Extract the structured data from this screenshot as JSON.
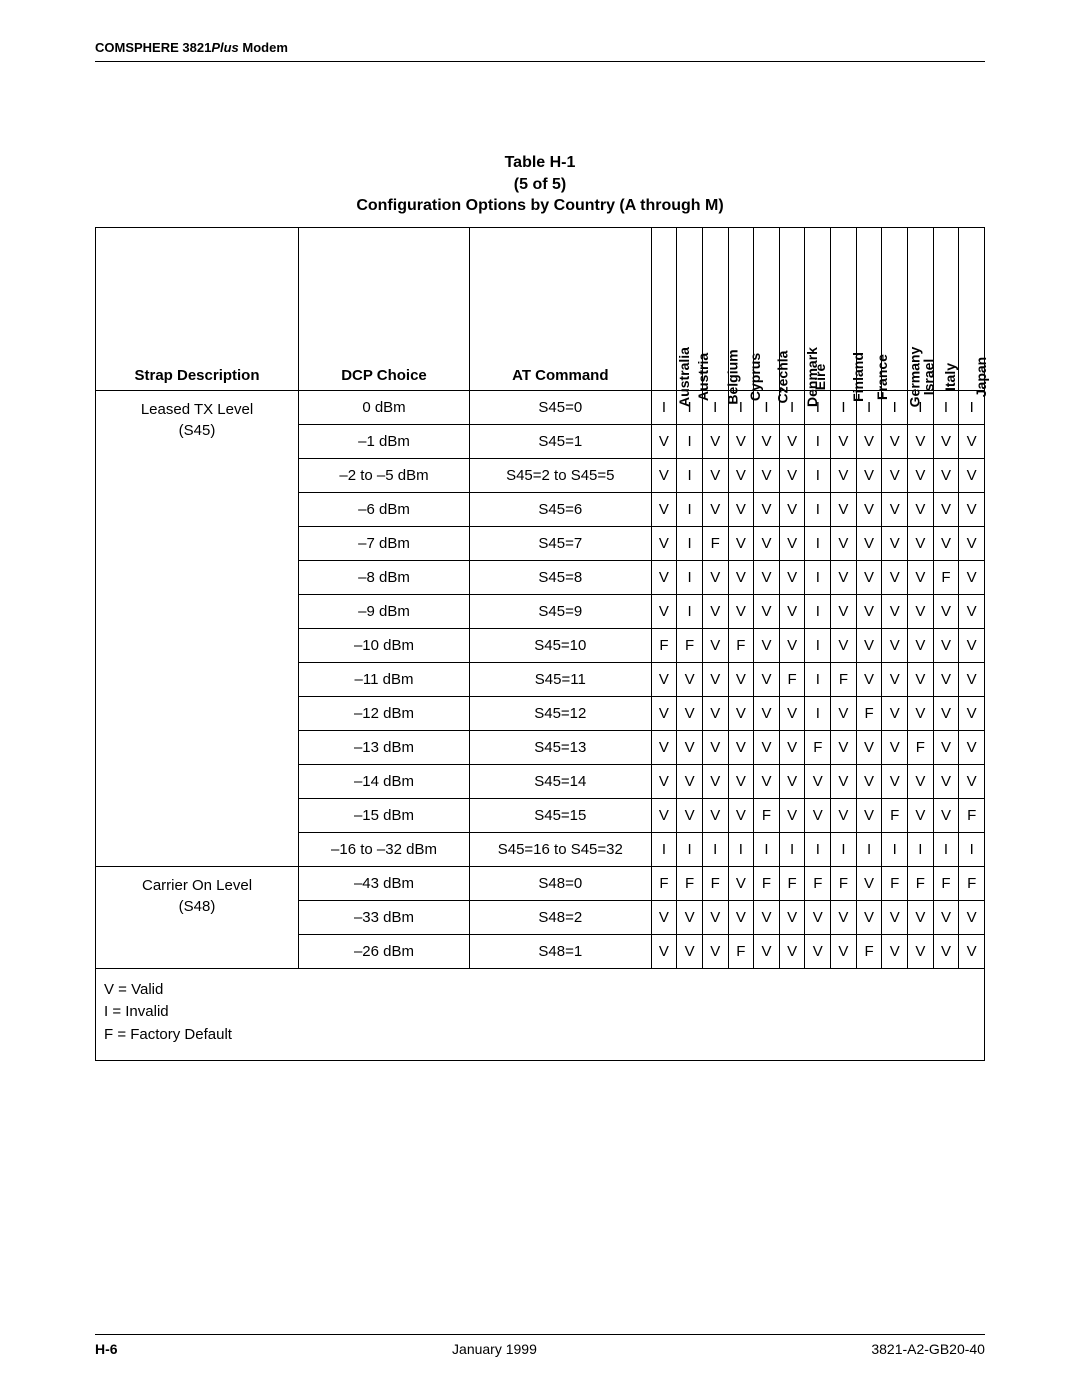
{
  "header": {
    "prefix": "COMSPHERE 3821",
    "plus": "Plus",
    "suffix": " Modem"
  },
  "caption": {
    "line1": "Table H-1",
    "line2": "(5 of 5)",
    "line3": "Configuration Options by Country (A through M)"
  },
  "columns": {
    "strap": "Strap Description",
    "dcp": "DCP Choice",
    "at": "AT Command",
    "countries": [
      "Australia",
      "Austria",
      "Belgium",
      "Cyprus",
      "Czechia",
      "Denmark",
      "Eire",
      "Finland",
      "France",
      "Germany",
      "Israel",
      "Italy",
      "Japan"
    ]
  },
  "groups": [
    {
      "strap_line1": "Leased TX Level",
      "strap_line2": "(S45)",
      "rows": [
        {
          "dcp": "0 dBm",
          "at": "S45=0",
          "v": [
            "I",
            "I",
            "I",
            "I",
            "I",
            "I",
            "I",
            "I",
            "I",
            "I",
            "I",
            "I",
            "I"
          ]
        },
        {
          "dcp": "–1 dBm",
          "at": "S45=1",
          "v": [
            "V",
            "I",
            "V",
            "V",
            "V",
            "V",
            "I",
            "V",
            "V",
            "V",
            "V",
            "V",
            "V"
          ]
        },
        {
          "dcp": "–2 to –5 dBm",
          "at": "S45=2 to S45=5",
          "v": [
            "V",
            "I",
            "V",
            "V",
            "V",
            "V",
            "I",
            "V",
            "V",
            "V",
            "V",
            "V",
            "V"
          ]
        },
        {
          "dcp": "–6 dBm",
          "at": "S45=6",
          "v": [
            "V",
            "I",
            "V",
            "V",
            "V",
            "V",
            "I",
            "V",
            "V",
            "V",
            "V",
            "V",
            "V"
          ]
        },
        {
          "dcp": "–7 dBm",
          "at": "S45=7",
          "v": [
            "V",
            "I",
            "F",
            "V",
            "V",
            "V",
            "I",
            "V",
            "V",
            "V",
            "V",
            "V",
            "V"
          ]
        },
        {
          "dcp": "–8 dBm",
          "at": "S45=8",
          "v": [
            "V",
            "I",
            "V",
            "V",
            "V",
            "V",
            "I",
            "V",
            "V",
            "V",
            "V",
            "F",
            "V"
          ]
        },
        {
          "dcp": "–9 dBm",
          "at": "S45=9",
          "v": [
            "V",
            "I",
            "V",
            "V",
            "V",
            "V",
            "I",
            "V",
            "V",
            "V",
            "V",
            "V",
            "V"
          ]
        },
        {
          "dcp": "–10 dBm",
          "at": "S45=10",
          "v": [
            "F",
            "F",
            "V",
            "F",
            "V",
            "V",
            "I",
            "V",
            "V",
            "V",
            "V",
            "V",
            "V"
          ]
        },
        {
          "dcp": "–11 dBm",
          "at": "S45=11",
          "v": [
            "V",
            "V",
            "V",
            "V",
            "V",
            "F",
            "I",
            "F",
            "V",
            "V",
            "V",
            "V",
            "V"
          ]
        },
        {
          "dcp": "–12 dBm",
          "at": "S45=12",
          "v": [
            "V",
            "V",
            "V",
            "V",
            "V",
            "V",
            "I",
            "V",
            "F",
            "V",
            "V",
            "V",
            "V"
          ]
        },
        {
          "dcp": "–13 dBm",
          "at": "S45=13",
          "v": [
            "V",
            "V",
            "V",
            "V",
            "V",
            "V",
            "F",
            "V",
            "V",
            "V",
            "F",
            "V",
            "V"
          ]
        },
        {
          "dcp": "–14 dBm",
          "at": "S45=14",
          "v": [
            "V",
            "V",
            "V",
            "V",
            "V",
            "V",
            "V",
            "V",
            "V",
            "V",
            "V",
            "V",
            "V"
          ]
        },
        {
          "dcp": "–15 dBm",
          "at": "S45=15",
          "v": [
            "V",
            "V",
            "V",
            "V",
            "F",
            "V",
            "V",
            "V",
            "V",
            "F",
            "V",
            "V",
            "F"
          ]
        },
        {
          "dcp": "–16 to –32 dBm",
          "at": "S45=16 to S45=32",
          "v": [
            "I",
            "I",
            "I",
            "I",
            "I",
            "I",
            "I",
            "I",
            "I",
            "I",
            "I",
            "I",
            "I"
          ]
        }
      ]
    },
    {
      "strap_line1": "Carrier On Level",
      "strap_line2": "(S48)",
      "rows": [
        {
          "dcp": "–43 dBm",
          "at": "S48=0",
          "v": [
            "F",
            "F",
            "F",
            "V",
            "F",
            "F",
            "F",
            "F",
            "V",
            "F",
            "F",
            "F",
            "F"
          ]
        },
        {
          "dcp": "–33 dBm",
          "at": "S48=2",
          "v": [
            "V",
            "V",
            "V",
            "V",
            "V",
            "V",
            "V",
            "V",
            "V",
            "V",
            "V",
            "V",
            "V"
          ]
        },
        {
          "dcp": "–26 dBm",
          "at": "S48=1",
          "v": [
            "V",
            "V",
            "V",
            "F",
            "V",
            "V",
            "V",
            "V",
            "F",
            "V",
            "V",
            "V",
            "V"
          ]
        }
      ]
    }
  ],
  "legend": {
    "l1": "V = Valid",
    "l2": "I  = Invalid",
    "l3": "F = Factory Default"
  },
  "footer": {
    "page": "H-6",
    "date": "January 1999",
    "doc": "3821-A2-GB20-40"
  }
}
